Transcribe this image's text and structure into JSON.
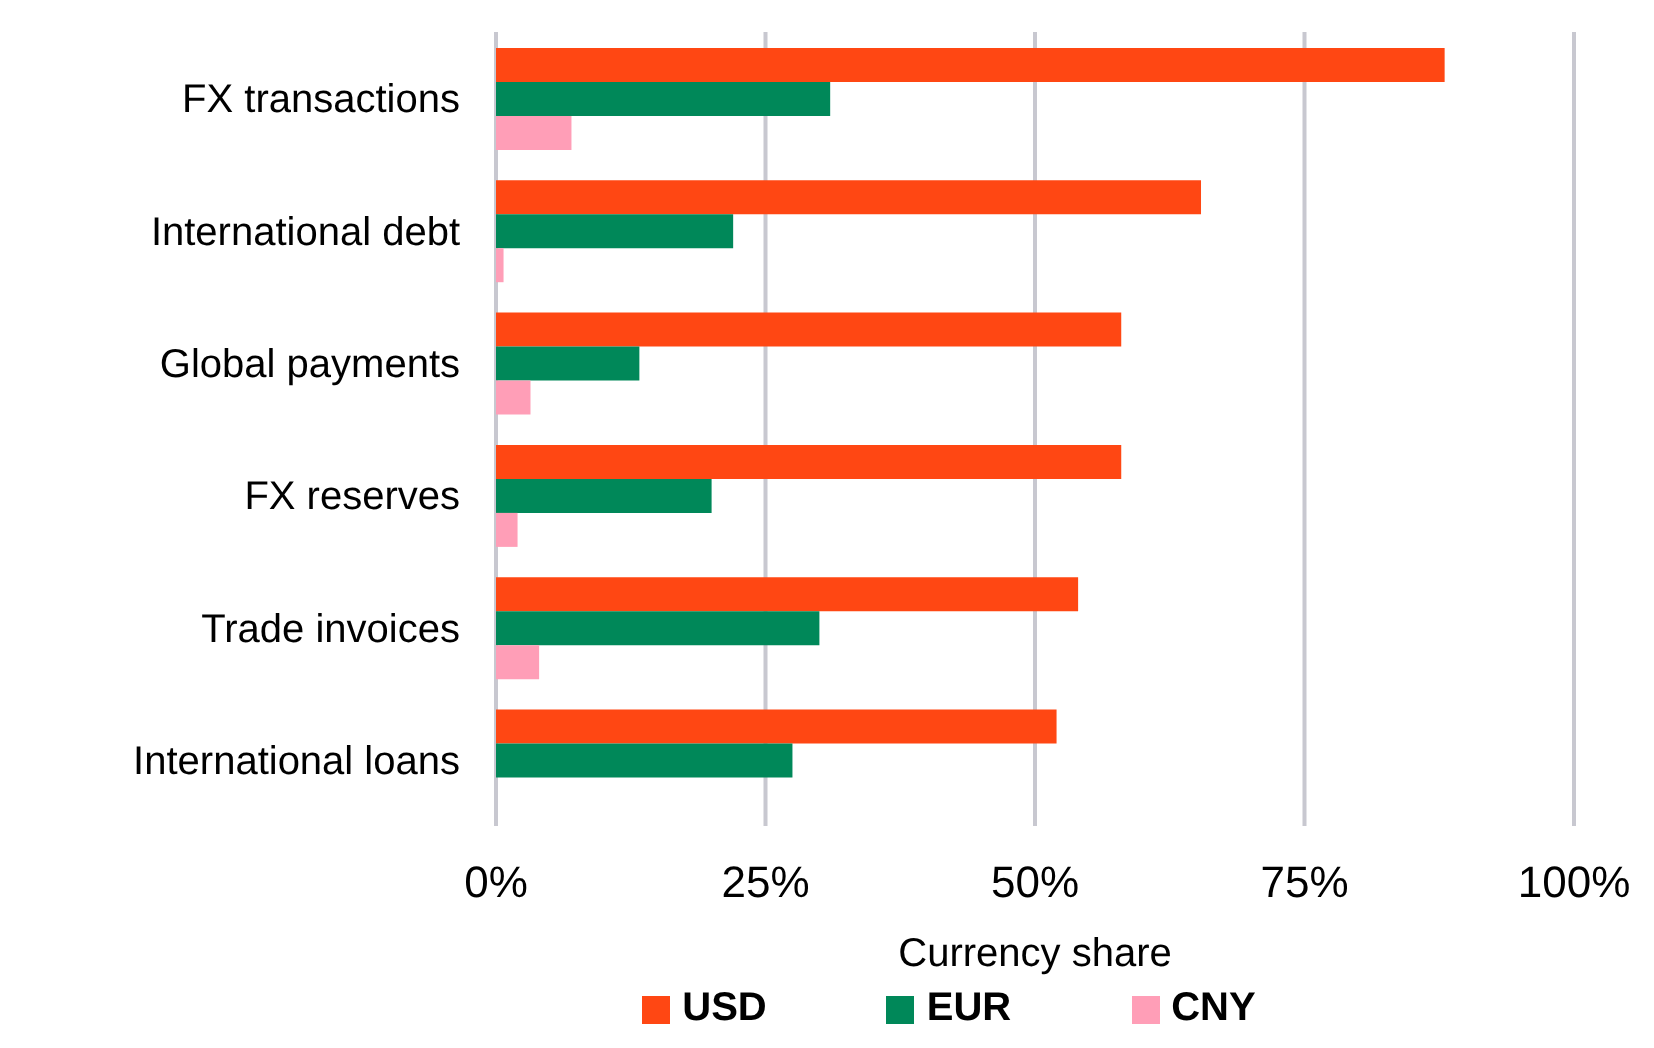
{
  "chart_data": {
    "type": "bar",
    "orientation": "horizontal",
    "categories": [
      "FX transactions",
      "International debt",
      "Global payments",
      "FX reserves",
      "Trade invoices",
      "International loans"
    ],
    "series": [
      {
        "name": "USD",
        "color": "#ff4713",
        "values": [
          88,
          65.4,
          58,
          58,
          54,
          52
        ]
      },
      {
        "name": "EUR",
        "color": "#008859",
        "values": [
          31,
          22,
          13.3,
          20,
          30,
          27.5
        ]
      },
      {
        "name": "CNY",
        "color": "#ff9eb7",
        "values": [
          7,
          0.7,
          3.2,
          2,
          4,
          null
        ]
      }
    ],
    "xlim": [
      0,
      100
    ],
    "xticks": [
      {
        "value": 0,
        "label": "0%"
      },
      {
        "value": 25,
        "label": "25%"
      },
      {
        "value": 50,
        "label": "50%"
      },
      {
        "value": 75,
        "label": "75%"
      },
      {
        "value": 100,
        "label": "100%"
      }
    ],
    "xlabel": "Currency share",
    "grid": "x",
    "legend": "bottom"
  }
}
